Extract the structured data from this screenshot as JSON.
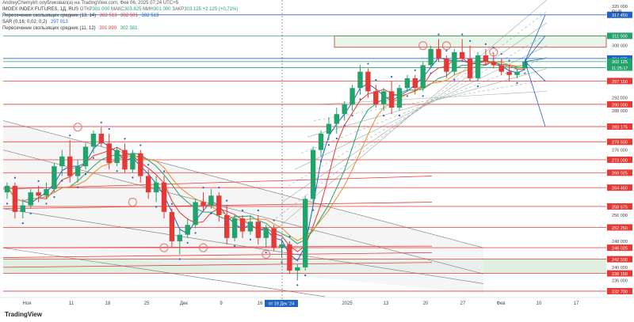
{
  "header": {
    "title": "AndreyChernykh опубликовал(а) на TradingView.com, Фев 06, 2025 07:24 UTC+5",
    "symbol": "IMOEX INDEX FUTURES, 1Д, RUS",
    "ohlc": [
      {
        "label": "ОТКР",
        "value": "301 000"
      },
      {
        "label": "МАКС",
        "value": "303 825"
      },
      {
        "label": "МИН",
        "value": "301 000"
      },
      {
        "label": "ЗАКР",
        "value": "303 125"
      },
      {
        "label": "",
        "value": "+2 125 (+0,71%)"
      }
    ],
    "indicators": [
      {
        "name": "Пересечение скользящих средних (13, 14)",
        "values": [
          "302 513",
          "302 501",
          "302 513"
        ]
      },
      {
        "name": "SAR (0,16; 0,02; 0,2)",
        "values": [
          "297 013"
        ]
      },
      {
        "name": "Пересечение скользящих средних (11, 12)",
        "values": [
          "301 890",
          "302 381"
        ]
      }
    ],
    "currency": "RUB",
    "logo_text": "TradingView"
  },
  "chart_data": {
    "type": "candlestick",
    "y_range": [
      231000,
      322000
    ],
    "y_ticks": [
      "320 000",
      "316 000",
      "312 000",
      "308 000",
      "304 000",
      "300 000",
      "296 000",
      "292 000",
      "288 000",
      "284 000",
      "280 000",
      "276 000",
      "272 000",
      "268 000",
      "264 000",
      "260 000",
      "256 000",
      "252 000",
      "248 000",
      "244 000",
      "240 000",
      "236 000"
    ],
    "x_ticks": [
      "Ноя",
      "11",
      "18",
      "25",
      "Дек",
      "9",
      "16",
      "2025",
      "13",
      "20",
      "27",
      "Фев",
      "10",
      "17"
    ],
    "crosshair_date": "пт 19 Дек '24",
    "price_labels": [
      {
        "value": 317450,
        "text": "317 450",
        "color": "#1e63c6"
      },
      {
        "value": 311000,
        "text": "311 000",
        "color": "#22a36b"
      },
      {
        "value": 304075,
        "text": "304 075",
        "color": "#1e63c6"
      },
      {
        "value": 303125,
        "text": "303 125",
        "color": "#22a36b"
      },
      {
        "value": 301250,
        "text": "11:25:17",
        "color": "#22a36b"
      },
      {
        "value": 297150,
        "text": "297 150",
        "color": "#e53935"
      },
      {
        "value": 290000,
        "text": "290 000",
        "color": "#e53935"
      },
      {
        "value": 283175,
        "text": "283 175",
        "color": "#e53935"
      },
      {
        "value": 278500,
        "text": "278 500",
        "color": "#e53935"
      },
      {
        "value": 273000,
        "text": "273 000",
        "color": "#e53935"
      },
      {
        "value": 269025,
        "text": "269 025",
        "color": "#e53935"
      },
      {
        "value": 264450,
        "text": "264 450",
        "color": "#e53935"
      },
      {
        "value": 258675,
        "text": "258 675",
        "color": "#e53935"
      },
      {
        "value": 252250,
        "text": "252 250",
        "color": "#e53935"
      },
      {
        "value": 246025,
        "text": "246 025",
        "color": "#e53935"
      },
      {
        "value": 242500,
        "text": "242 500",
        "color": "#e53935"
      },
      {
        "value": 238150,
        "text": "238 150",
        "color": "#e53935"
      },
      {
        "value": 232700,
        "text": "232 700",
        "color": "#e53935"
      }
    ],
    "candles": [
      {
        "o": 263000,
        "h": 266000,
        "l": 261000,
        "c": 265000
      },
      {
        "o": 265000,
        "h": 266000,
        "l": 255000,
        "c": 257000
      },
      {
        "o": 257000,
        "h": 261000,
        "l": 255000,
        "c": 259000
      },
      {
        "o": 259000,
        "h": 264000,
        "l": 258000,
        "c": 263000
      },
      {
        "o": 263000,
        "h": 265000,
        "l": 260000,
        "c": 262000
      },
      {
        "o": 262000,
        "h": 266000,
        "l": 261000,
        "c": 264000
      },
      {
        "o": 264000,
        "h": 272000,
        "l": 263000,
        "c": 271000
      },
      {
        "o": 271000,
        "h": 276000,
        "l": 268000,
        "c": 274000
      },
      {
        "o": 274000,
        "h": 279000,
        "l": 266000,
        "c": 268000
      },
      {
        "o": 268000,
        "h": 273000,
        "l": 266000,
        "c": 271000
      },
      {
        "o": 271000,
        "h": 278000,
        "l": 270000,
        "c": 277000
      },
      {
        "o": 277000,
        "h": 282000,
        "l": 275000,
        "c": 281000
      },
      {
        "o": 281000,
        "h": 283000,
        "l": 277000,
        "c": 278000
      },
      {
        "o": 278000,
        "h": 281000,
        "l": 270000,
        "c": 272000
      },
      {
        "o": 272000,
        "h": 277000,
        "l": 271000,
        "c": 276000
      },
      {
        "o": 276000,
        "h": 278000,
        "l": 269000,
        "c": 270000
      },
      {
        "o": 270000,
        "h": 276000,
        "l": 269000,
        "c": 275000
      },
      {
        "o": 275000,
        "h": 276000,
        "l": 266000,
        "c": 268000
      },
      {
        "o": 268000,
        "h": 270000,
        "l": 261000,
        "c": 263000
      },
      {
        "o": 263000,
        "h": 268000,
        "l": 260000,
        "c": 266000
      },
      {
        "o": 266000,
        "h": 268000,
        "l": 255000,
        "c": 257000
      },
      {
        "o": 257000,
        "h": 258000,
        "l": 246000,
        "c": 248000
      },
      {
        "o": 248000,
        "h": 252000,
        "l": 244000,
        "c": 250000
      },
      {
        "o": 250000,
        "h": 255000,
        "l": 249000,
        "c": 253000
      },
      {
        "o": 253000,
        "h": 261000,
        "l": 252000,
        "c": 260000
      },
      {
        "o": 260000,
        "h": 263000,
        "l": 257000,
        "c": 259000
      },
      {
        "o": 259000,
        "h": 264000,
        "l": 258000,
        "c": 262000
      },
      {
        "o": 262000,
        "h": 263000,
        "l": 254000,
        "c": 256000
      },
      {
        "o": 256000,
        "h": 259000,
        "l": 247000,
        "c": 249000
      },
      {
        "o": 249000,
        "h": 256000,
        "l": 248000,
        "c": 255000
      },
      {
        "o": 255000,
        "h": 256000,
        "l": 249000,
        "c": 251000
      },
      {
        "o": 251000,
        "h": 256000,
        "l": 250000,
        "c": 254000
      },
      {
        "o": 254000,
        "h": 256000,
        "l": 247000,
        "c": 249000
      },
      {
        "o": 249000,
        "h": 253000,
        "l": 246000,
        "c": 252000
      },
      {
        "o": 252000,
        "h": 253000,
        "l": 245000,
        "c": 246000
      },
      {
        "o": 246000,
        "h": 249000,
        "l": 243000,
        "c": 247000
      },
      {
        "o": 247000,
        "h": 248000,
        "l": 238000,
        "c": 239000
      },
      {
        "o": 239000,
        "h": 241000,
        "l": 236000,
        "c": 240000
      },
      {
        "o": 240000,
        "h": 262000,
        "l": 239000,
        "c": 261000
      },
      {
        "o": 261000,
        "h": 277000,
        "l": 259000,
        "c": 276000
      },
      {
        "o": 276000,
        "h": 282000,
        "l": 274000,
        "c": 281000
      },
      {
        "o": 281000,
        "h": 286000,
        "l": 279000,
        "c": 284000
      },
      {
        "o": 284000,
        "h": 289000,
        "l": 281000,
        "c": 287000
      },
      {
        "o": 287000,
        "h": 291000,
        "l": 285000,
        "c": 290000
      },
      {
        "o": 290000,
        "h": 296000,
        "l": 288000,
        "c": 295000
      },
      {
        "o": 295000,
        "h": 302000,
        "l": 293000,
        "c": 300000
      },
      {
        "o": 300000,
        "h": 301000,
        "l": 292000,
        "c": 294000
      },
      {
        "o": 294000,
        "h": 296000,
        "l": 289000,
        "c": 290000
      },
      {
        "o": 290000,
        "h": 295000,
        "l": 288000,
        "c": 294000
      },
      {
        "o": 294000,
        "h": 297000,
        "l": 287000,
        "c": 289000
      },
      {
        "o": 289000,
        "h": 296000,
        "l": 288000,
        "c": 295000
      },
      {
        "o": 295000,
        "h": 299000,
        "l": 294000,
        "c": 298000
      },
      {
        "o": 298000,
        "h": 299000,
        "l": 293000,
        "c": 295000
      },
      {
        "o": 295000,
        "h": 303000,
        "l": 294000,
        "c": 302000
      },
      {
        "o": 302000,
        "h": 308000,
        "l": 301000,
        "c": 307000
      },
      {
        "o": 307000,
        "h": 310000,
        "l": 303000,
        "c": 304000
      },
      {
        "o": 304000,
        "h": 305000,
        "l": 298000,
        "c": 300000
      },
      {
        "o": 300000,
        "h": 307000,
        "l": 299000,
        "c": 306000
      },
      {
        "o": 306000,
        "h": 310000,
        "l": 303000,
        "c": 304000
      },
      {
        "o": 304000,
        "h": 308000,
        "l": 297000,
        "c": 298000
      },
      {
        "o": 298000,
        "h": 306000,
        "l": 297000,
        "c": 305000
      },
      {
        "o": 305000,
        "h": 307000,
        "l": 302000,
        "c": 303000
      },
      {
        "o": 303000,
        "h": 306000,
        "l": 301000,
        "c": 302000
      },
      {
        "o": 302000,
        "h": 304000,
        "l": 299000,
        "c": 300000
      },
      {
        "o": 300000,
        "h": 302000,
        "l": 297000,
        "c": 299000
      },
      {
        "o": 299000,
        "h": 301000,
        "l": 298000,
        "c": 300000
      },
      {
        "o": 301000,
        "h": 303825,
        "l": 301000,
        "c": 303125
      }
    ]
  }
}
